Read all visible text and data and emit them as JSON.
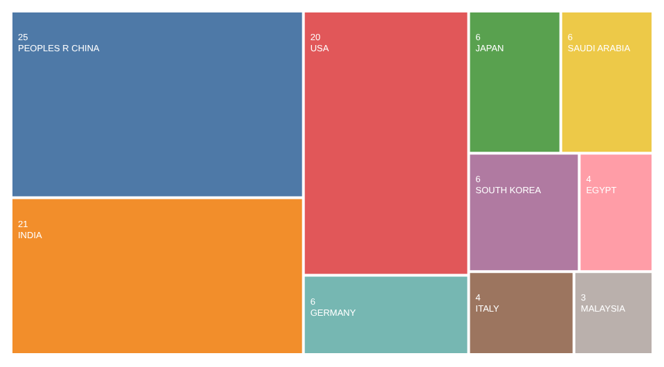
{
  "chart_data": {
    "type": "other",
    "categories": [
      "PEOPLES R CHINA",
      "INDIA",
      "USA",
      "GERMANY",
      "JAPAN",
      "SAUDI ARABIA",
      "SOUTH KOREA",
      "EGYPT",
      "ITALY",
      "MALAYSIA"
    ],
    "values": [
      25,
      21,
      20,
      6,
      6,
      6,
      6,
      4,
      4,
      3
    ],
    "colors": [
      "#4e79a7",
      "#f28e2b",
      "#e15759",
      "#76b7b2",
      "#59a14f",
      "#edc948",
      "#b07aa1",
      "#ff9da7",
      "#9c755f",
      "#bab0ac"
    ],
    "data_labels": true
  }
}
